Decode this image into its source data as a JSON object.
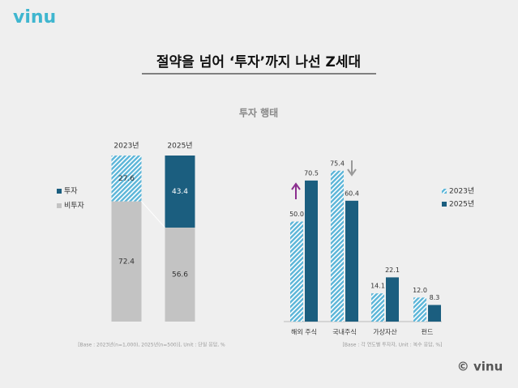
{
  "logo": "vinu",
  "title": "절약을 넘어 ‘투자’까지 나선 Z세대",
  "subtitle": "투자 행태",
  "footer": "© vinu",
  "chart_data": [
    {
      "type": "stacked-bar",
      "categories": [
        "2023년",
        "2025년"
      ],
      "series": [
        {
          "name": "투자",
          "color": "#1b5e7f",
          "point_colors": [
            "#5bb5d8",
            "#1b5e7f"
          ],
          "hatched": [
            true,
            false
          ],
          "values": [
            27.6,
            43.4
          ]
        },
        {
          "name": "비투자",
          "color": "#c3c3c3",
          "values": [
            72.4,
            56.6
          ]
        }
      ],
      "ylim": [
        0,
        100
      ],
      "note": "[Base : 2023년(n=1,000), 2025년(n=500)], Unit : 단일 응답, %"
    },
    {
      "type": "bar",
      "categories": [
        "해외 주식",
        "국내주식",
        "가상자산",
        "펀드"
      ],
      "series": [
        {
          "name": "2023년",
          "color": "#5bb5d8",
          "hatched": true,
          "values": [
            50.0,
            75.4,
            14.1,
            12.0
          ],
          "value_labels": [
            "50.0",
            "75.4",
            "14.1",
            "12.0"
          ]
        },
        {
          "name": "2025년",
          "color": "#1b5e7f",
          "hatched": false,
          "values": [
            70.5,
            60.4,
            22.1,
            8.3
          ],
          "value_labels": [
            "70.5",
            "60.4",
            "22.1",
            "8.3"
          ]
        }
      ],
      "ylim": [
        0,
        80
      ],
      "note": "[Base : 각 연도별 투자자, Unit : 복수 응답, %]"
    }
  ]
}
